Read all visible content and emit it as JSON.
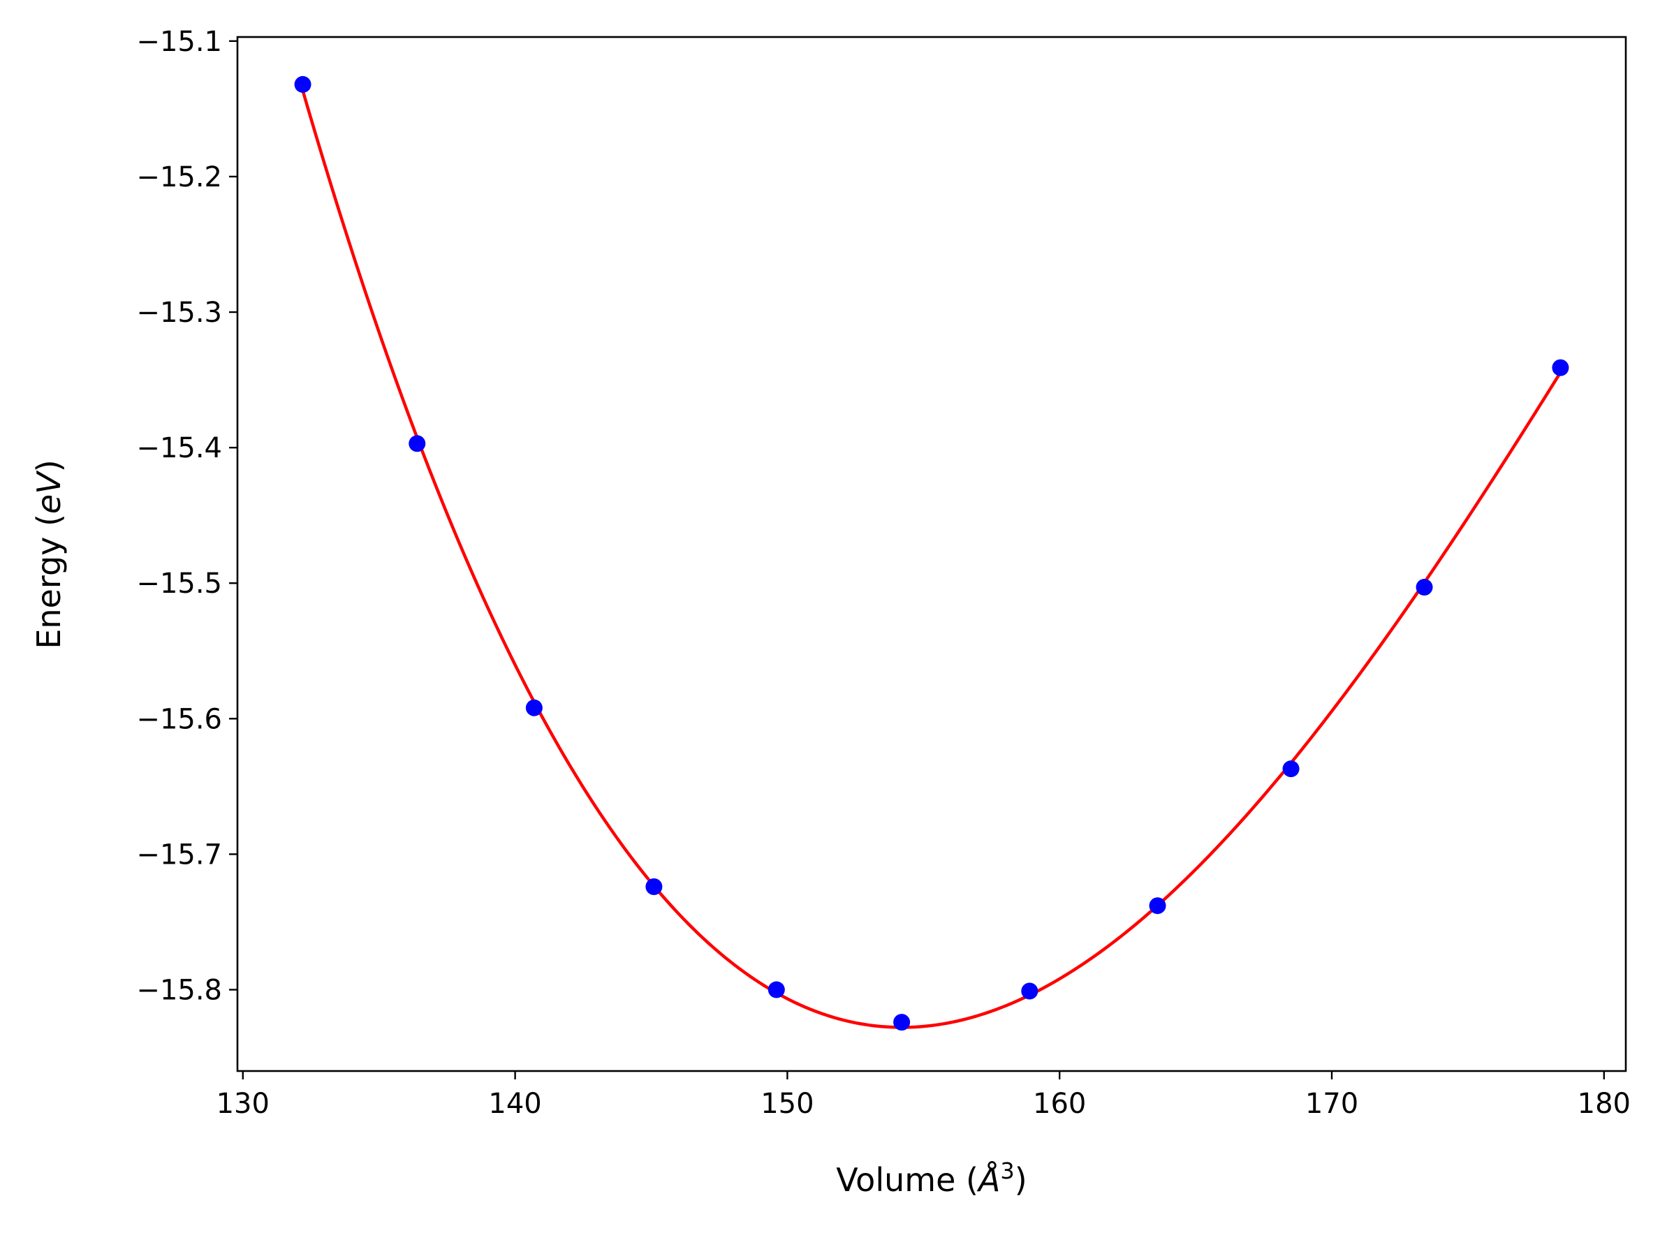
{
  "chart_data": {
    "type": "scatter",
    "title": "",
    "xlabel": {
      "prefix": "Volume (",
      "italic": "Å",
      "superscript": "3",
      "suffix": ")"
    },
    "ylabel": {
      "prefix": "Energy (",
      "italic": "eV",
      "suffix": ")"
    },
    "xlim": [
      129.8,
      180.8
    ],
    "ylim": [
      -15.86,
      -15.097
    ],
    "x_ticks": [
      130,
      140,
      150,
      160,
      170,
      180
    ],
    "x_tick_labels": [
      "130",
      "140",
      "150",
      "160",
      "170",
      "180"
    ],
    "y_ticks": [
      -15.1,
      -15.2,
      -15.3,
      -15.4,
      -15.5,
      -15.6,
      -15.7,
      -15.8
    ],
    "y_tick_labels": [
      "−15.1",
      "−15.2",
      "−15.3",
      "−15.4",
      "−15.5",
      "−15.6",
      "−15.7",
      "−15.8"
    ],
    "grid": false,
    "legend": "none",
    "series": [
      {
        "kind": "points",
        "color": "#0000ff",
        "x": [
          132.2,
          136.4,
          140.7,
          145.1,
          149.6,
          154.2,
          158.9,
          163.6,
          168.5,
          173.4,
          178.4
        ],
        "y": [
          -15.132,
          -15.397,
          -15.592,
          -15.724,
          -15.8,
          -15.824,
          -15.801,
          -15.738,
          -15.637,
          -15.503,
          -15.341
        ]
      },
      {
        "kind": "fit-curve",
        "color": "#ff0000",
        "x_range": [
          132.2,
          178.4
        ],
        "through": "points"
      }
    ]
  }
}
